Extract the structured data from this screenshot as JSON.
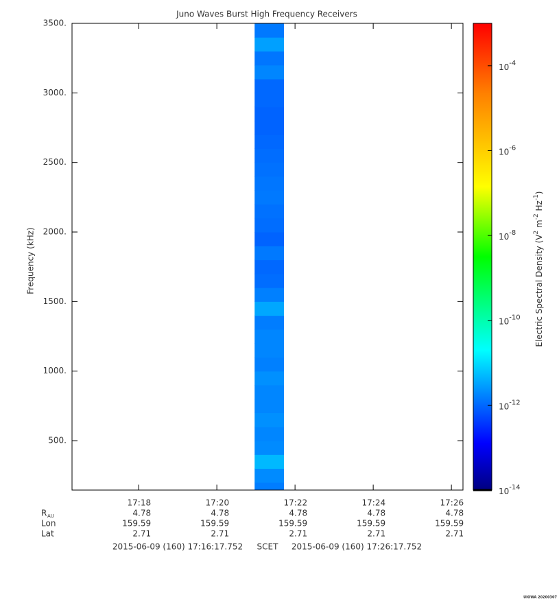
{
  "chart_data": {
    "type": "spectrogram",
    "title": "Juno Waves Burst High Frequency Receivers",
    "ylabel": "Frequency (kHz)",
    "ylim": [
      145,
      3500
    ],
    "yticks": [
      {
        "value": 500,
        "label": "500."
      },
      {
        "value": 1000,
        "label": "1000."
      },
      {
        "value": 1500,
        "label": "1500."
      },
      {
        "value": 2000,
        "label": "2000."
      },
      {
        "value": 2500,
        "label": "2500."
      },
      {
        "value": 3000,
        "label": "3000."
      },
      {
        "value": 3500,
        "label": "3500."
      }
    ],
    "xlim": [
      "2015-06-09T17:16:17.752",
      "2015-06-09T17:26:17.752"
    ],
    "xticks": [
      {
        "value": "2015-06-09T17:18:00",
        "label": "17:18"
      },
      {
        "value": "2015-06-09T17:20:00",
        "label": "17:20"
      },
      {
        "value": "2015-06-09T17:22:00",
        "label": "17:22"
      },
      {
        "value": "2015-06-09T17:24:00",
        "label": "17:24"
      },
      {
        "value": "2015-06-09T17:26:00",
        "label": "17:26"
      }
    ],
    "ephemeris": [
      {
        "label": "R",
        "subscript": "AU",
        "values": [
          4.78,
          4.78,
          4.78,
          4.78,
          4.78
        ]
      },
      {
        "label": "Lon",
        "values": [
          159.59,
          159.59,
          159.59,
          159.59,
          159.59
        ]
      },
      {
        "label": "Lat",
        "values": [
          2.71,
          2.71,
          2.71,
          2.71,
          2.71
        ]
      }
    ],
    "footer": {
      "start": "2015-06-09 (160) 17:16:17.752",
      "label": "SCET",
      "end": "2015-06-09 (160) 17:26:17.752"
    },
    "spectrogram": {
      "start": "2015-06-09T17:20:58",
      "end": "2015-06-09T17:21:43",
      "freq_bins": [
        150,
        200,
        300,
        400,
        500,
        600,
        700,
        800,
        900,
        1000,
        1100,
        1200,
        1300,
        1400,
        1500,
        1600,
        1700,
        1800,
        1900,
        2000,
        2100,
        2200,
        2300,
        2400,
        2500,
        2600,
        2700,
        2800,
        2900,
        3000,
        3100,
        3200,
        3300,
        3400,
        3500
      ],
      "values": [
        1.5e-12,
        2e-12,
        5e-12,
        2e-12,
        1.8e-12,
        2.2e-12,
        1.8e-12,
        1.8e-12,
        2.2e-12,
        1.6e-12,
        1.8e-12,
        1.8e-12,
        1.5e-12,
        3.5e-12,
        1.6e-12,
        1.1e-12,
        1e-12,
        1.4e-12,
        9e-13,
        1.1e-12,
        1.2e-12,
        1.4e-12,
        1.3e-12,
        1.2e-12,
        1.1e-12,
        1e-12,
        9e-13,
        9e-13,
        1e-12,
        1e-12,
        1.8e-12,
        1.3e-12,
        3e-12,
        1.4e-12
      ]
    },
    "zlog": true,
    "zlim": [
      1e-14,
      0.001
    ],
    "zticks": [
      {
        "value": 1e-14,
        "label": "10",
        "exponent": "-14"
      },
      {
        "value": 1e-12,
        "label": "10",
        "exponent": "-12"
      },
      {
        "value": 1e-10,
        "label": "10",
        "exponent": "-10"
      },
      {
        "value": 1e-08,
        "label": "10",
        "exponent": "-8"
      },
      {
        "value": 1e-06,
        "label": "10",
        "exponent": "-6"
      },
      {
        "value": 0.0001,
        "label": "10",
        "exponent": "-4"
      }
    ],
    "zlabel": [
      "Electric Spectral Density (V",
      "2",
      " m",
      "-2",
      " Hz",
      "-1",
      ")"
    ],
    "colormap": [
      {
        "pos": 0,
        "color": "#000080"
      },
      {
        "pos": 0.1,
        "color": "#0000ff"
      },
      {
        "pos": 0.3,
        "color": "#00ffff"
      },
      {
        "pos": 0.5,
        "color": "#00ff00"
      },
      {
        "pos": 0.65,
        "color": "#ffff00"
      },
      {
        "pos": 0.85,
        "color": "#ff8000"
      },
      {
        "pos": 1,
        "color": "#ff0000"
      }
    ],
    "stamp": "UIOWA 20200307"
  }
}
